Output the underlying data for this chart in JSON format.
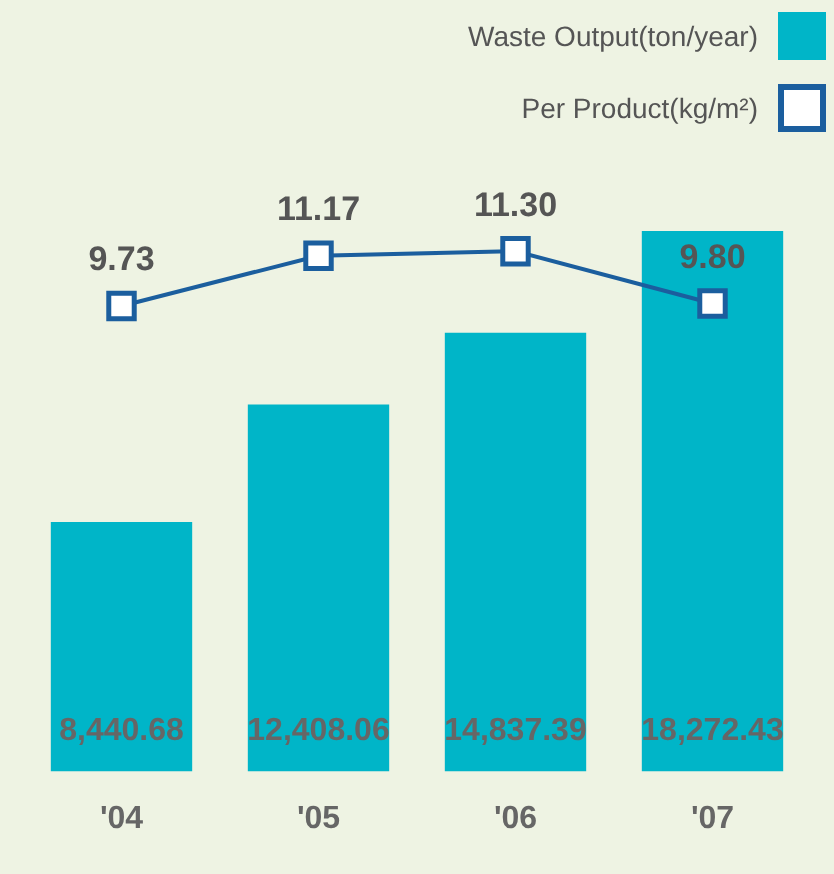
{
  "chart_data": {
    "type": "bar",
    "categories": [
      "'04",
      "'05",
      "'06",
      "'07"
    ],
    "series": [
      {
        "name": "Waste Output(ton/year)",
        "color": "#00b5c8",
        "values": [
          8440.68,
          12408.06,
          14837.39,
          18272.43
        ],
        "value_labels": [
          "8,440.68",
          "12,408.06",
          "14,837.39",
          "18,272.43"
        ]
      },
      {
        "name": "Per Product(kg/m²)",
        "type": "line",
        "axis": "y2",
        "color": "#1b5e9e",
        "values": [
          9.73,
          11.17,
          11.3,
          9.8
        ],
        "value_labels": [
          "9.73",
          "11.17",
          "11.30",
          "9.80"
        ]
      }
    ],
    "legend": "top right",
    "marker": "square",
    "grid": false
  }
}
